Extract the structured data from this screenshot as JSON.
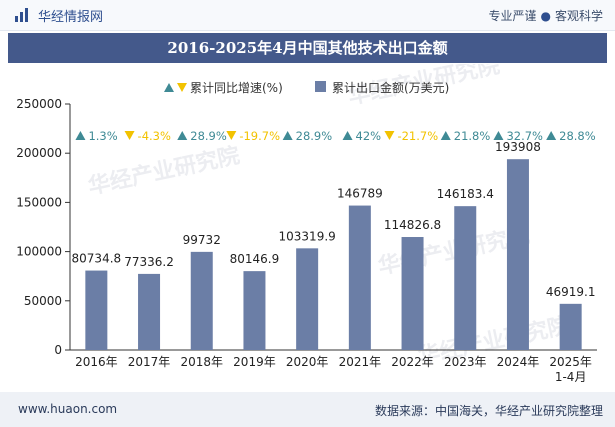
{
  "header": {
    "brand": "华经情报网",
    "slogan_left": "专业严谨",
    "slogan_right": "客观科学"
  },
  "footer": {
    "site": "www.huaon.com",
    "source": "数据来源：中国海关，华经产业研究院整理"
  },
  "watermark": "华经产业研究院",
  "colors": {
    "bar": "#6b7ea6",
    "up": "#3f8a95",
    "down": "#f2c200",
    "title_bg": "#44598b"
  },
  "chart_data": {
    "type": "bar",
    "title": "2016-2025年4月中国其他技术出口金额",
    "categories": [
      "2016年",
      "2017年",
      "2018年",
      "2019年",
      "2020年",
      "2021年",
      "2022年",
      "2023年",
      "2024年",
      "2025年\n1-4月"
    ],
    "series": [
      {
        "name": "累计出口金额(万美元)",
        "values": [
          80734.8,
          77336.2,
          99732,
          80146.9,
          103319.9,
          146789,
          114826.8,
          146183.4,
          193908,
          46919.1
        ],
        "labels": [
          "80734.8",
          "77336.2",
          "99732",
          "80146.9",
          "103319.9",
          "146789",
          "114826.8",
          "146183.4",
          "193908",
          "46919.1"
        ]
      },
      {
        "name": "累计同比增速(%)",
        "values": [
          1.3,
          -4.3,
          28.9,
          -19.7,
          28.9,
          42,
          -21.7,
          21.8,
          32.7,
          28.8
        ],
        "labels": [
          "1.3%",
          "-4.3%",
          "28.9%",
          "-19.7%",
          "28.9%",
          "42%",
          "-21.7%",
          "21.8%",
          "32.7%",
          "28.8%"
        ]
      }
    ],
    "ylim": [
      0,
      250000
    ],
    "yticks": [
      "0",
      "50000",
      "100000",
      "150000",
      "200000",
      "250000"
    ],
    "legend_position": "top-center",
    "grid": false
  }
}
